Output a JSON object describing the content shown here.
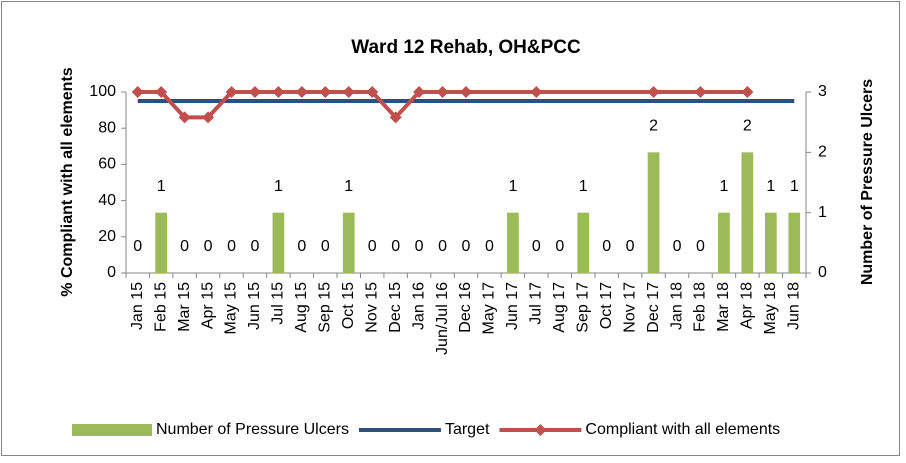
{
  "chart_data": {
    "type": "bar_line",
    "title": "Ward 12 Rehab, OH&PCC",
    "y_axis_label": "% Compliant with all elements",
    "y2_axis_label": "Number of Pressure Ulcers",
    "categories": [
      "Jan 15",
      "Feb 15",
      "Mar 15",
      "Apr 15",
      "May 15",
      "Jun 15",
      "Jul 15",
      "Aug 15",
      "Sep 15",
      "Oct 15",
      "Nov 15",
      "Dec 15",
      "Jan 16",
      "Jun/Jul 16",
      "Dec 16",
      "May 17",
      "Jun 17",
      "Jul 17",
      "Aug 17",
      "Sep 17",
      "Oct 17",
      "Nov 17",
      "Dec 17",
      "Jan 18",
      "Feb 18",
      "Mar 18",
      "Apr 18",
      "May 18",
      "Jun 18"
    ],
    "ylim": [
      0,
      100
    ],
    "yticks": [
      0,
      20,
      40,
      60,
      80,
      100
    ],
    "y2lim": [
      0,
      3
    ],
    "y2ticks": [
      0,
      1,
      2,
      3
    ],
    "legend": "bottom",
    "span_gaps": true,
    "series": [
      {
        "name": "Number of Pressure Ulcers",
        "type": "bar",
        "axis": "y2",
        "color": "#9bbb59",
        "values": [
          0,
          1,
          0,
          0,
          0,
          0,
          1,
          0,
          0,
          1,
          0,
          0,
          0,
          0,
          0,
          0,
          1,
          0,
          0,
          1,
          0,
          0,
          2,
          0,
          0,
          1,
          2,
          1,
          1
        ]
      },
      {
        "name": "Target",
        "type": "line",
        "color": "#2c4f7c",
        "values": [
          95,
          95,
          95,
          95,
          95,
          95,
          95,
          95,
          95,
          95,
          95,
          95,
          95,
          95,
          95,
          95,
          95,
          95,
          95,
          95,
          95,
          95,
          95,
          95,
          95,
          95,
          95,
          95,
          95
        ]
      },
      {
        "name": "Compliant with all elements",
        "type": "line",
        "marker": "diamond",
        "color": "#c0504d",
        "values": [
          100,
          100,
          86,
          86,
          100,
          100,
          100,
          100,
          100,
          100,
          100,
          86,
          100,
          100,
          100,
          null,
          null,
          100,
          null,
          null,
          null,
          null,
          100,
          null,
          100,
          null,
          100,
          null,
          null
        ]
      }
    ]
  }
}
